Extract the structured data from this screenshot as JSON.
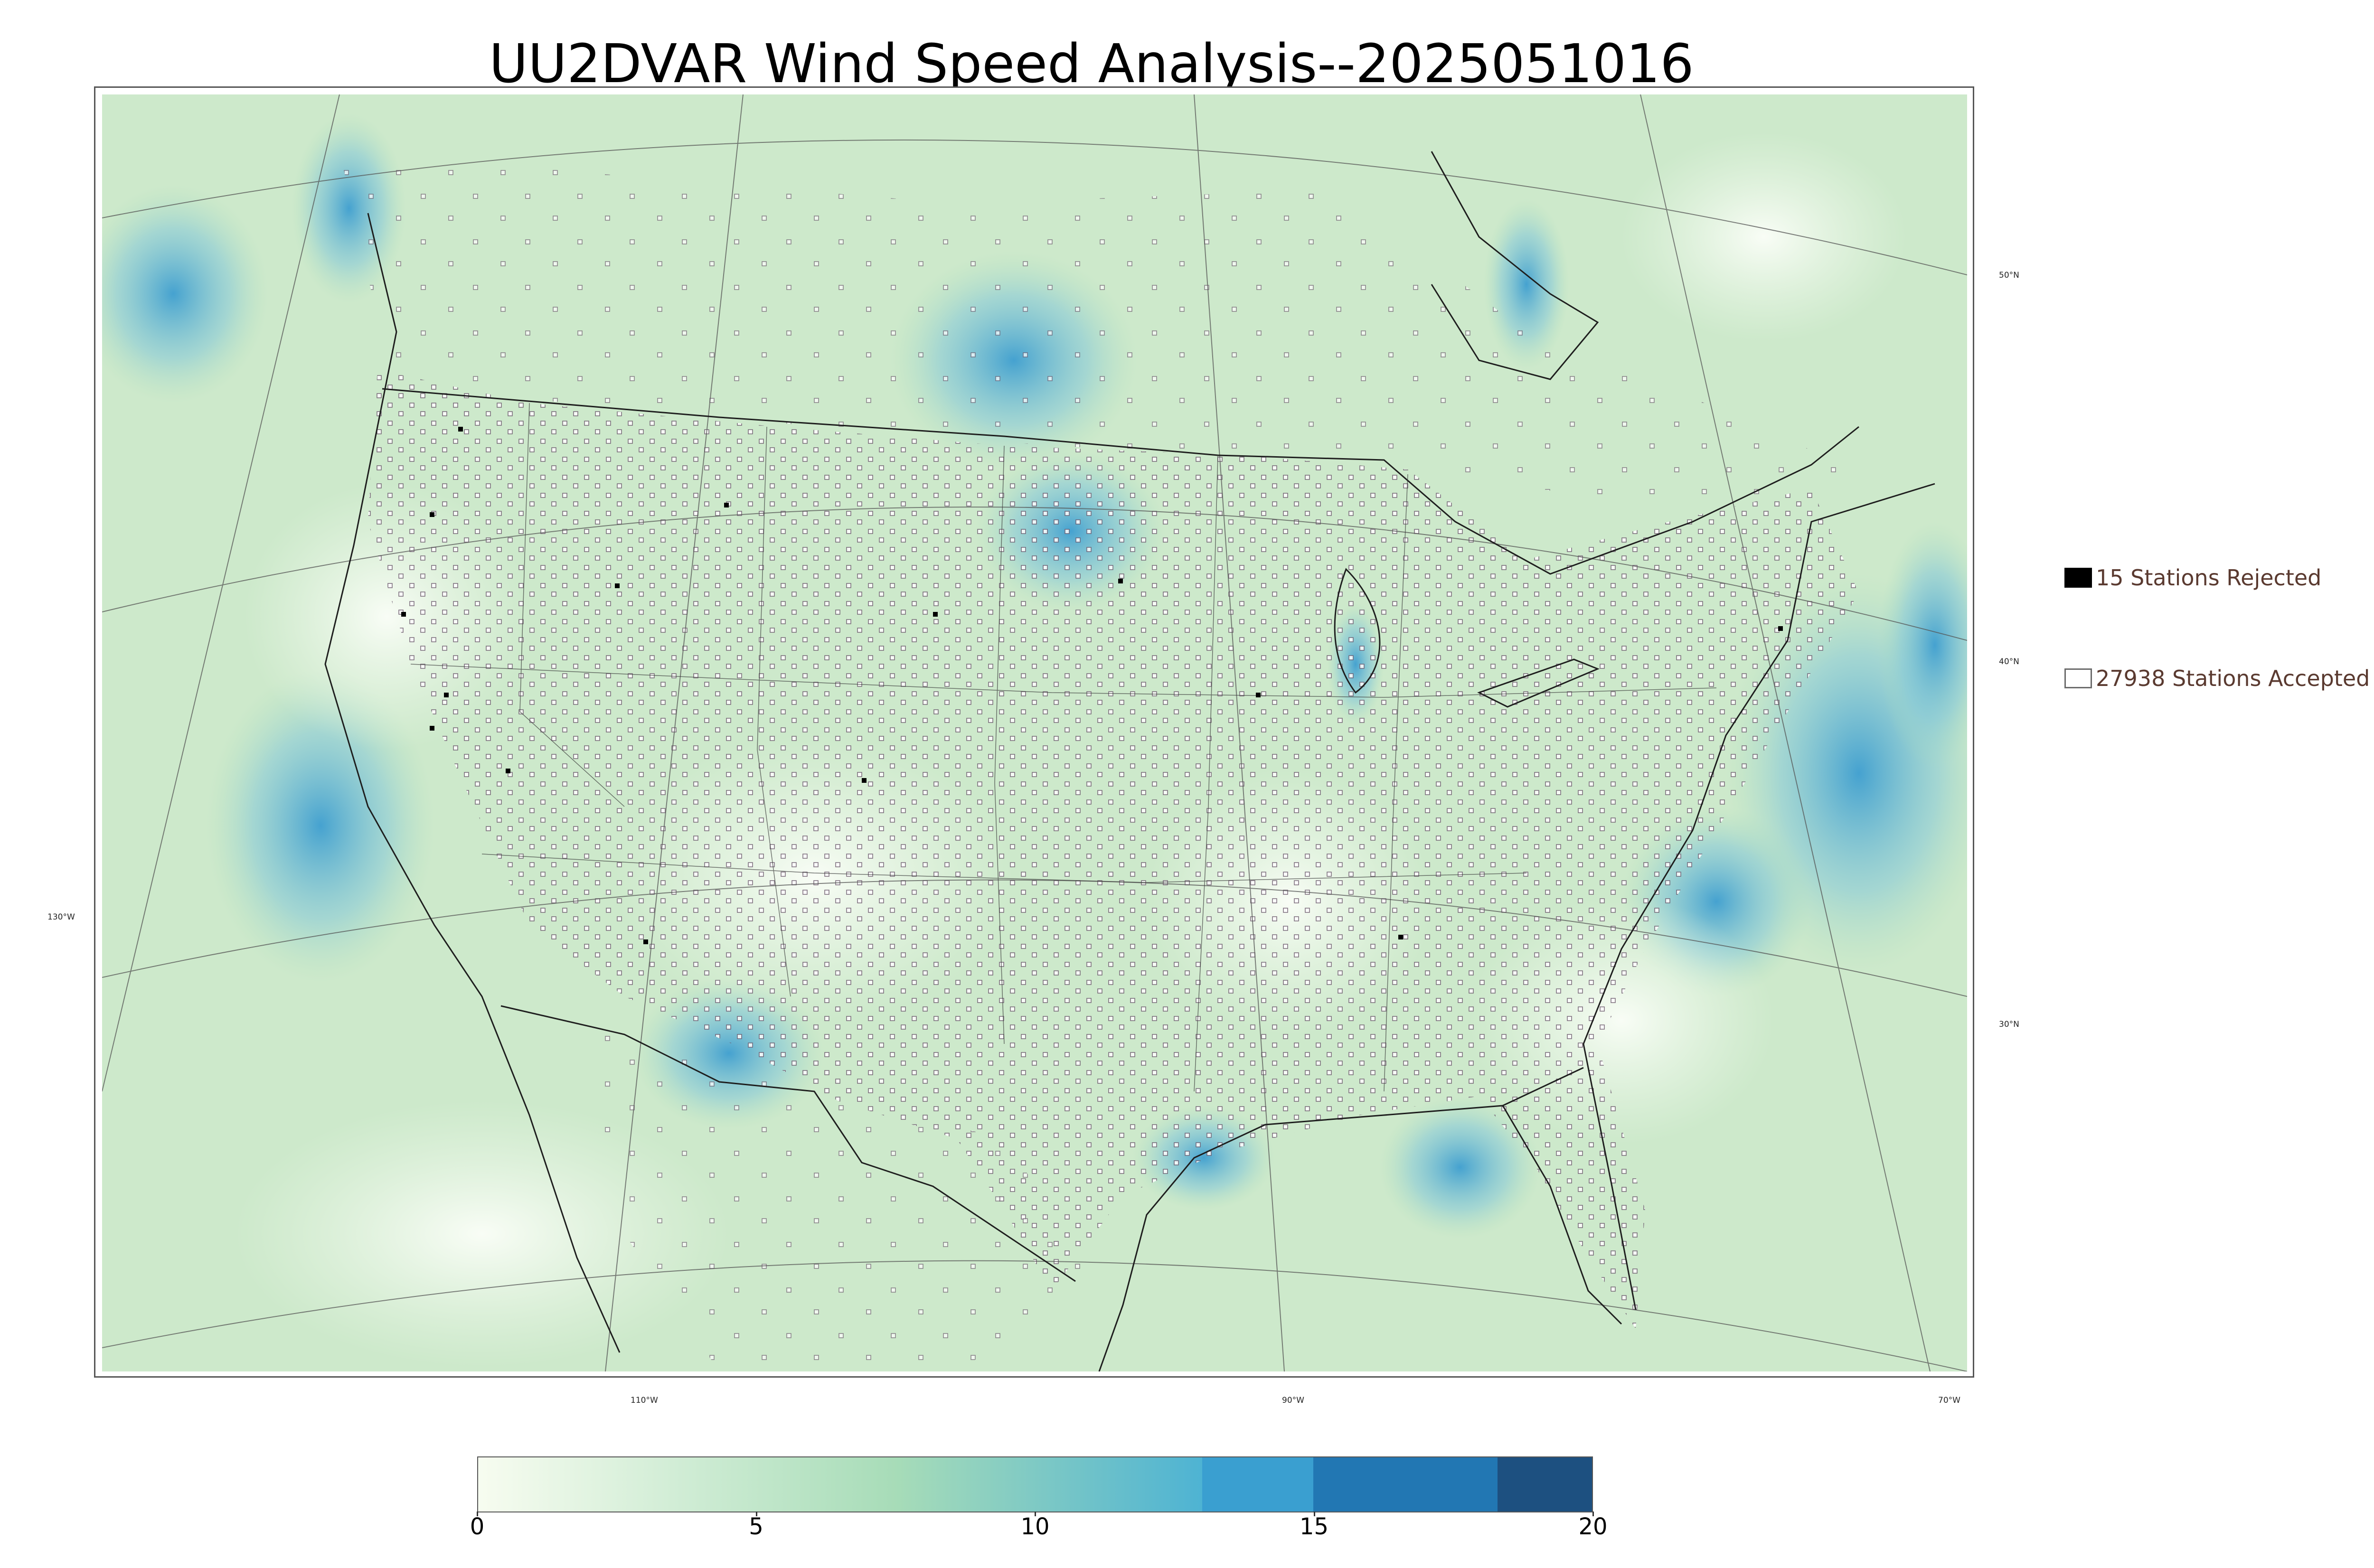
{
  "title": "UU2DVAR Wind Speed Analysis--2025051016",
  "map": {
    "latitude_labels": [
      "50°N",
      "40°N",
      "30°N"
    ],
    "longitude_labels": [
      "130°W",
      "110°W",
      "90°W",
      "70°W"
    ],
    "background_color": "#d8efd4",
    "land_color": "#eef8ea",
    "gust_color": "#4ba7d6",
    "station_marker_accepted": "white-square",
    "station_marker_rejected": "black-square"
  },
  "legend": {
    "rejected_label": "15 Stations Rejected",
    "accepted_label": "27938 Stations Accepted",
    "rejected_count": 15,
    "accepted_count": 27938
  },
  "colorbar": {
    "min": 0,
    "max": 20,
    "tick_labels": [
      "0",
      "5",
      "10",
      "15",
      "20"
    ],
    "ticks": [
      0,
      5,
      10,
      15,
      20
    ],
    "bins": [
      {
        "from": 0,
        "to": 7.5,
        "gradient": [
          "#f7fcf0",
          "#a7dcb8"
        ]
      },
      {
        "from": 7.5,
        "to": 13,
        "gradient": [
          "#a7dcb8",
          "#4eb3d3"
        ]
      },
      {
        "from": 13,
        "to": 15,
        "color": "#3a9fd0"
      },
      {
        "from": 15,
        "to": 18.3,
        "color": "#2277b3"
      },
      {
        "from": 18.3,
        "to": 20,
        "color": "#1d5080"
      }
    ]
  }
}
